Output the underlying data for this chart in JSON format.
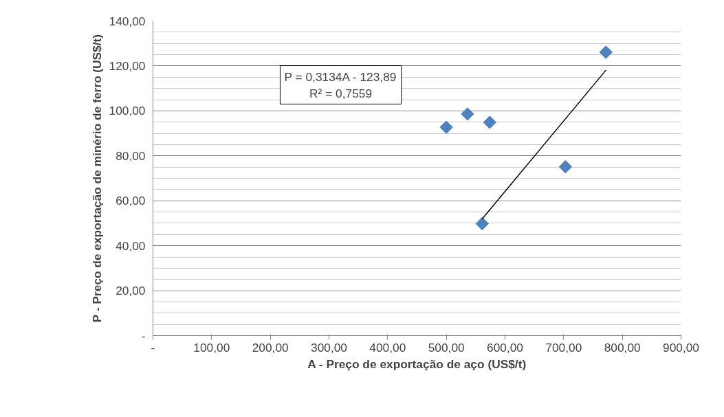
{
  "chart_data": {
    "type": "scatter",
    "xlabel": "A - Preço de exportação de aço (US$/t)",
    "ylabel": "P - Preço de exportação de minério de ferro (US$/t)",
    "annotations": [
      "P = 0,3134A - 123,89",
      "R² = 0,7559"
    ],
    "series": [
      {
        "color": "#4f81bd",
        "x": [
          561,
          500,
          536,
          574,
          703,
          772
        ],
        "values": [
          49.8,
          92.7,
          98.6,
          94.9,
          75.1,
          126.1
        ]
      },
      {
        "type": "line",
        "marker": "none",
        "color": "#000000",
        "x": [
          561,
          772
        ],
        "values": [
          51.9,
          118.1
        ]
      }
    ],
    "marker": "diamond",
    "grid": "y",
    "xlim": [
      0,
      900
    ],
    "ylim": [
      0,
      140
    ],
    "xticks": [
      {
        "value": 0,
        "label": "-"
      },
      {
        "value": 100,
        "label": "100,00"
      },
      {
        "value": 200,
        "label": "200,00"
      },
      {
        "value": 300,
        "label": "300,00"
      },
      {
        "value": 400,
        "label": "400,00"
      },
      {
        "value": 500,
        "label": "500,00"
      },
      {
        "value": 600,
        "label": "600,00"
      },
      {
        "value": 700,
        "label": "700,00"
      },
      {
        "value": 800,
        "label": "800,00"
      },
      {
        "value": 900,
        "label": "900,00"
      }
    ],
    "yticks": [
      {
        "value": 0,
        "label": "-"
      },
      {
        "value": 20,
        "label": "20,00"
      },
      {
        "value": 40,
        "label": "40,00"
      },
      {
        "value": 60,
        "label": "60,00"
      },
      {
        "value": 80,
        "label": "80,00"
      },
      {
        "value": 100,
        "label": "100,00"
      },
      {
        "value": 120,
        "label": "120,00"
      },
      {
        "value": 140,
        "label": "140,00"
      }
    ]
  }
}
